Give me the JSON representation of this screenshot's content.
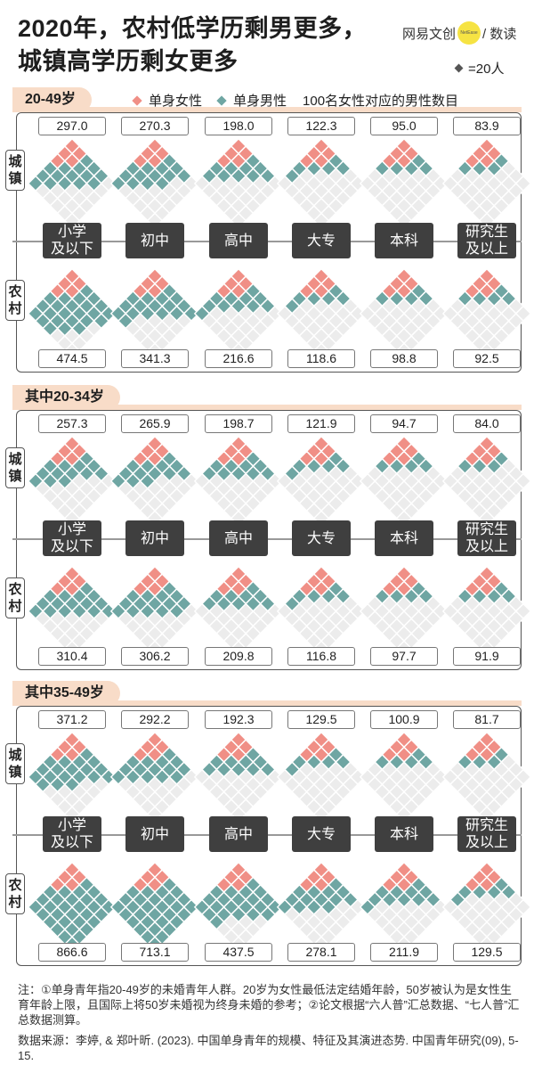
{
  "title": {
    "line1": "2020年，农村低学历剩男更多，",
    "line2": "城镇高学历剩女更多"
  },
  "logo": {
    "left": "网易文创",
    "badge": "NetEase",
    "right": "/ 数读"
  },
  "unit_legend": "=20人",
  "legend": {
    "female": "单身女性",
    "male": "单身男性",
    "ratio": "100名女性对应的男性数目"
  },
  "colors": {
    "female": "#f08f86",
    "male": "#6fa6a3",
    "empty": "#ececec"
  },
  "side_labels": {
    "urban": "城镇",
    "rural": "农村"
  },
  "categories": [
    [
      "小学",
      "及以下"
    ],
    [
      "初中"
    ],
    [
      "高中"
    ],
    [
      "大专"
    ],
    [
      "本科"
    ],
    [
      "研究生",
      "及以上"
    ]
  ],
  "chart_data": [
    {
      "type": "pictogram",
      "title": "20-49岁",
      "unit": "=20人",
      "categories": [
        "小学及以下",
        "初中",
        "高中",
        "大专",
        "本科",
        "研究生及以上"
      ],
      "series": [
        {
          "name": "城镇",
          "values": [
            297.0,
            270.3,
            198.0,
            122.3,
            95.0,
            83.9
          ],
          "labels": [
            "297.0",
            "270.3",
            "198.0",
            "122.3",
            "95.0",
            "83.9"
          ]
        },
        {
          "name": "农村",
          "values": [
            474.5,
            341.3,
            216.6,
            118.6,
            98.8,
            92.5
          ],
          "labels": [
            "474.5",
            "341.3",
            "216.6",
            "118.6",
            "98.8",
            "92.5"
          ]
        }
      ]
    },
    {
      "type": "pictogram",
      "title": "其中20-34岁",
      "unit": "=20人",
      "categories": [
        "小学及以下",
        "初中",
        "高中",
        "大专",
        "本科",
        "研究生及以上"
      ],
      "series": [
        {
          "name": "城镇",
          "values": [
            257.3,
            265.9,
            198.7,
            121.9,
            94.7,
            84.0
          ],
          "labels": [
            "257.3",
            "265.9",
            "198.7",
            "121.9",
            "94.7",
            "84.0"
          ]
        },
        {
          "name": "农村",
          "values": [
            310.4,
            306.2,
            209.8,
            116.8,
            97.7,
            91.9
          ],
          "labels": [
            "310.4",
            "306.2",
            "209.8",
            "116.8",
            "97.7",
            "91.9"
          ]
        }
      ]
    },
    {
      "type": "pictogram",
      "title": "其中35-49岁",
      "unit": "=20人",
      "categories": [
        "小学及以下",
        "初中",
        "高中",
        "大专",
        "本科",
        "研究生及以上"
      ],
      "series": [
        {
          "name": "城镇",
          "values": [
            371.2,
            292.2,
            192.3,
            129.5,
            100.9,
            81.7
          ],
          "labels": [
            "371.2",
            "292.2",
            "192.3",
            "129.5",
            "100.9",
            "81.7"
          ]
        },
        {
          "name": "农村",
          "values": [
            866.6,
            713.1,
            437.5,
            278.1,
            211.9,
            129.5
          ],
          "labels": [
            "866.6",
            "713.1",
            "437.5",
            "278.1",
            "211.9",
            "129.5"
          ]
        }
      ]
    }
  ],
  "notes": {
    "note": "注：①单身青年指20-49岁的未婚青年人群。20岁为女性最低法定结婚年龄，50岁被认为是女性生育年龄上限，且国际上将50岁未婚视为终身未婚的参考；②论文根据“六人普”汇总数据、“七人普”汇总数据测算。",
    "source": "数据来源：李婷, & 郑叶昕. (2023). 中国单身青年的规模、特征及其演进态势. 中国青年研究(09), 5-15."
  }
}
